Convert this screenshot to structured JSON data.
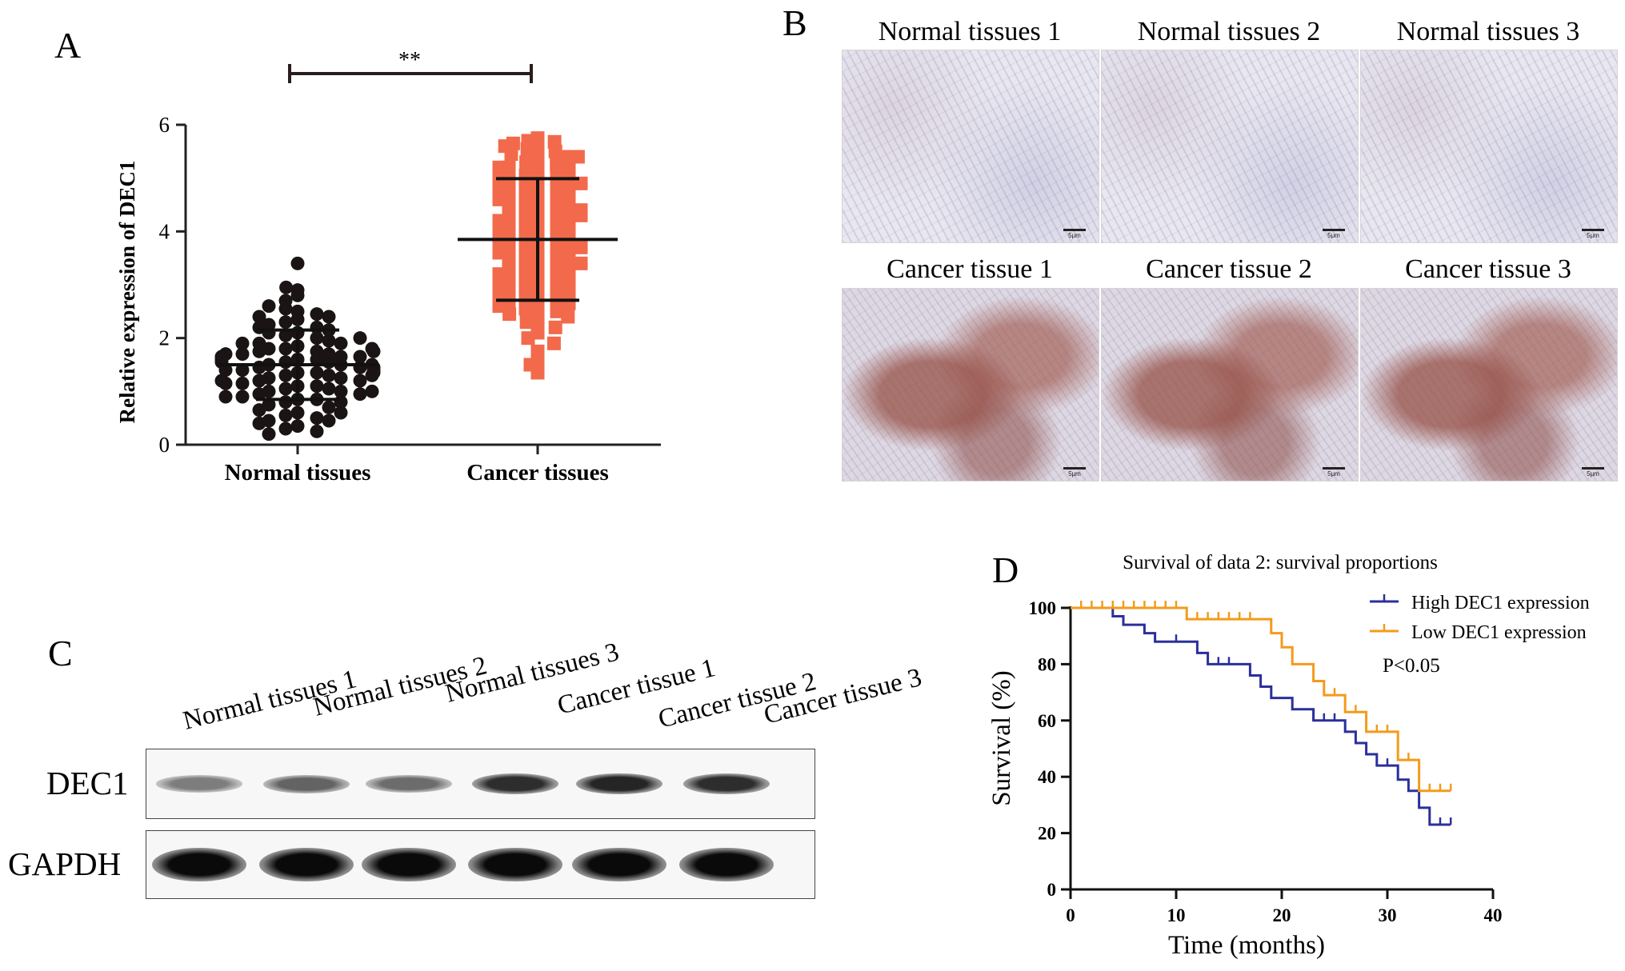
{
  "panels": {
    "A": {
      "letter": "A",
      "significance": "**",
      "chart_data": {
        "type": "scatter",
        "title": "",
        "xlabel": "",
        "ylabel": "Relative expression of DEC1",
        "ylim": [
          0,
          6
        ],
        "yticks": [
          0,
          2,
          4,
          6
        ],
        "categories": [
          "Normal tissues",
          "Cancer tissues"
        ],
        "series": [
          {
            "name": "Normal tissues",
            "color": "#1a1414",
            "marker": "circle",
            "mean": 1.5,
            "sd": 0.65,
            "values": [
              3.4,
              2.9,
              2.8,
              2.95,
              2.7,
              2.5,
              2.55,
              2.45,
              2.6,
              2.35,
              2.3,
              2.4,
              2.2,
              2.25,
              2.1,
              2.15,
              2.05,
              2.0,
              2.1,
              1.95,
              1.9,
              1.85,
              1.9,
              1.8,
              1.75,
              1.8,
              1.7,
              1.75,
              1.65,
              1.7,
              1.6,
              1.65,
              1.55,
              1.6,
              1.5,
              1.55,
              1.45,
              1.5,
              1.4,
              1.45,
              1.35,
              1.4,
              1.3,
              1.35,
              1.25,
              1.3,
              1.2,
              1.25,
              1.15,
              1.2,
              1.1,
              1.15,
              1.05,
              1.1,
              1.0,
              1.05,
              0.95,
              1.0,
              0.9,
              0.95,
              0.85,
              0.9,
              0.8,
              0.85,
              0.75,
              0.7,
              0.65,
              0.6,
              0.55,
              0.5,
              0.45,
              0.45,
              0.4,
              0.35,
              0.3,
              0.25,
              0.2,
              1.5,
              1.6,
              1.4,
              1.7,
              1.3,
              1.8,
              1.2,
              1.9,
              2.0,
              1.0,
              0.8,
              0.6,
              2.2,
              2.4,
              1.55,
              1.45,
              1.35,
              1.65,
              1.75
            ]
          },
          {
            "name": "Cancer tissues",
            "color": "#f26a4b",
            "marker": "square",
            "mean": 3.85,
            "sd": 1.14,
            "values": [
              5.75,
              5.7,
              5.68,
              5.65,
              5.6,
              5.55,
              5.5,
              5.45,
              5.4,
              5.35,
              5.3,
              5.25,
              5.2,
              5.15,
              5.1,
              5.05,
              5.0,
              4.95,
              4.9,
              4.85,
              4.8,
              4.75,
              4.7,
              4.65,
              4.6,
              4.55,
              4.5,
              4.45,
              4.4,
              4.35,
              4.3,
              4.25,
              4.2,
              4.15,
              4.1,
              4.05,
              4.0,
              3.95,
              3.9,
              3.85,
              3.8,
              3.75,
              3.7,
              3.65,
              3.6,
              3.55,
              3.5,
              3.45,
              3.4,
              3.35,
              3.3,
              3.25,
              3.2,
              3.15,
              3.1,
              3.05,
              3.0,
              2.95,
              2.9,
              2.85,
              2.8,
              2.75,
              2.7,
              2.65,
              2.6,
              2.55,
              2.5,
              2.45,
              2.4,
              2.35,
              2.3,
              2.2,
              2.1,
              2.0,
              1.9,
              1.75,
              1.6,
              1.5,
              1.35,
              5.6,
              5.4,
              5.2,
              5.0,
              4.8,
              4.6,
              4.4,
              4.2,
              4.0,
              3.8,
              3.6,
              3.4,
              3.2,
              3.0,
              2.8,
              2.6,
              4.9,
              4.3,
              3.7
            ]
          }
        ]
      }
    },
    "B": {
      "letter": "B",
      "scale_label": "5μm",
      "images": [
        {
          "label": "Normal tissues 1",
          "kind": "normal"
        },
        {
          "label": "Normal tissues 2",
          "kind": "normal"
        },
        {
          "label": "Normal tissues 3",
          "kind": "normal"
        },
        {
          "label": "Cancer tissue 1",
          "kind": "cancer"
        },
        {
          "label": "Cancer tissue 2",
          "kind": "cancer"
        },
        {
          "label": "Cancer tissue 3",
          "kind": "cancer"
        }
      ]
    },
    "C": {
      "letter": "C",
      "lanes": [
        "Normal tissues 1",
        "Normal tissues 2",
        "Normal tissues 3",
        "Cancer tissue 1",
        "Cancer tissue 2",
        "Cancer tissue 3"
      ],
      "rows": [
        {
          "label": "DEC1",
          "intensity": [
            0.35,
            0.5,
            0.45,
            0.8,
            0.85,
            0.8
          ]
        },
        {
          "label": "GAPDH",
          "intensity": [
            1.0,
            1.0,
            1.0,
            1.0,
            1.0,
            1.0
          ]
        }
      ]
    },
    "D": {
      "letter": "D",
      "chart_data": {
        "type": "line",
        "title": "Survival of data 2: survival proportions",
        "xlabel": "Time (months)",
        "ylabel": "Survival (%)",
        "xlim": [
          0,
          40
        ],
        "ylim": [
          0,
          100
        ],
        "xticks": [
          0,
          10,
          20,
          30,
          40
        ],
        "yticks": [
          0,
          20,
          40,
          60,
          80,
          100
        ],
        "annotation": "P<0.05",
        "series": [
          {
            "name": "High DEC1 expression",
            "color": "#2b2f9b",
            "steps": [
              [
                0,
                100
              ],
              [
                4,
                97
              ],
              [
                5,
                94
              ],
              [
                7,
                91
              ],
              [
                8,
                88
              ],
              [
                10,
                88
              ],
              [
                12,
                84
              ],
              [
                13,
                80
              ],
              [
                17,
                76
              ],
              [
                18,
                72
              ],
              [
                19,
                68
              ],
              [
                21,
                64
              ],
              [
                23,
                60
              ],
              [
                26,
                56
              ],
              [
                27,
                52
              ],
              [
                28,
                48
              ],
              [
                29,
                44
              ],
              [
                31,
                39
              ],
              [
                32,
                35
              ],
              [
                33,
                29
              ],
              [
                34,
                23
              ],
              [
                36,
                23
              ]
            ],
            "censored": [
              [
                10,
                88
              ],
              [
                14,
                80
              ],
              [
                15,
                80
              ],
              [
                23,
                60
              ],
              [
                24,
                60
              ],
              [
                25,
                60
              ],
              [
                30,
                44
              ],
              [
                35,
                23
              ],
              [
                36,
                23
              ]
            ]
          },
          {
            "name": "Low DEC1 expression",
            "color": "#f39b1c",
            "steps": [
              [
                0,
                100
              ],
              [
                11,
                100
              ],
              [
                11,
                96
              ],
              [
                18,
                96
              ],
              [
                19,
                91
              ],
              [
                20,
                86
              ],
              [
                21,
                80
              ],
              [
                23,
                74
              ],
              [
                24,
                69
              ],
              [
                26,
                63
              ],
              [
                28,
                56
              ],
              [
                30,
                56
              ],
              [
                31,
                46
              ],
              [
                32,
                46
              ],
              [
                33,
                35
              ],
              [
                36,
                35
              ]
            ],
            "censored": [
              [
                1,
                100
              ],
              [
                2,
                100
              ],
              [
                3,
                100
              ],
              [
                4,
                100
              ],
              [
                5,
                100
              ],
              [
                6,
                100
              ],
              [
                7,
                100
              ],
              [
                8,
                100
              ],
              [
                9,
                100
              ],
              [
                10,
                100
              ],
              [
                12,
                96
              ],
              [
                13,
                96
              ],
              [
                14,
                96
              ],
              [
                15,
                96
              ],
              [
                16,
                96
              ],
              [
                17,
                96
              ],
              [
                25,
                69
              ],
              [
                27,
                63
              ],
              [
                29,
                56
              ],
              [
                30,
                56
              ],
              [
                32,
                46
              ],
              [
                34,
                35
              ],
              [
                35,
                35
              ],
              [
                36,
                35
              ]
            ]
          }
        ]
      }
    }
  }
}
